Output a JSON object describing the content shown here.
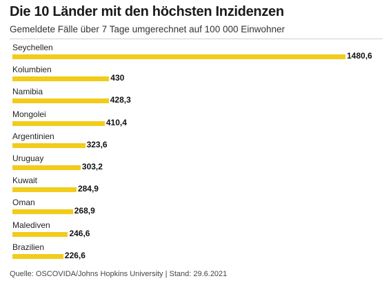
{
  "title": "Die 10 Länder mit den höchsten Inzidenzen",
  "subtitle": "Gemeldete Fälle über 7 Tage umgerechnet auf 100 000 Einwohner",
  "source": "Quelle: OSCOVIDA/Johns Hopkins University | Stand: 29.6.2021",
  "colors": {
    "bar": "#f2cc1b"
  },
  "chart_data": {
    "type": "bar",
    "orientation": "horizontal",
    "title": "Die 10 Länder mit den höchsten Inzidenzen",
    "subtitle": "Gemeldete Fälle über 7 Tage umgerechnet auf 100 000 Einwohner",
    "categories": [
      "Seychellen",
      "Kolumbien",
      "Namibia",
      "Mongolei",
      "Argentinien",
      "Uruguay",
      "Kuwait",
      "Oman",
      "Malediven",
      "Brazilien"
    ],
    "values": [
      1480.6,
      430,
      428.3,
      410.4,
      323.6,
      303.2,
      284.9,
      268.9,
      246.6,
      226.6
    ],
    "value_labels": [
      "1480,6",
      "430",
      "428,3",
      "410,4",
      "323,6",
      "303,2",
      "284,9",
      "268,9",
      "246,6",
      "226,6"
    ],
    "xlim": [
      0,
      1480.6
    ],
    "grid": false,
    "legend": "none"
  }
}
